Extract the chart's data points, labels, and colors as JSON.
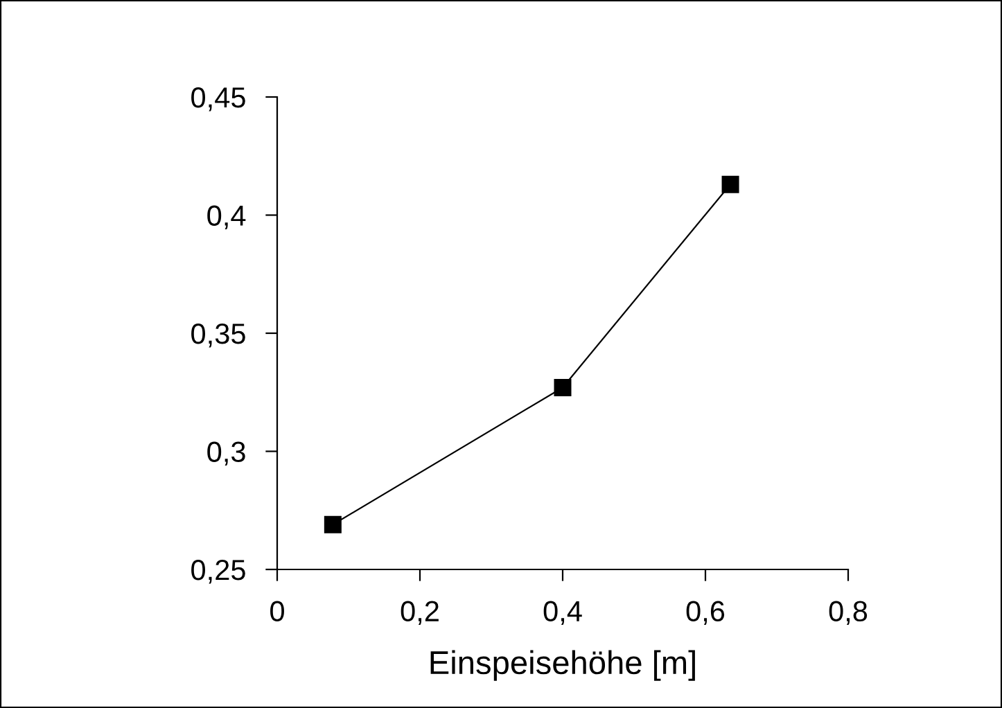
{
  "chart_data": {
    "type": "line",
    "xlabel": "Einspeisehöhe [m]",
    "x": [
      0.078,
      0.4,
      0.635
    ],
    "series": [
      {
        "color": "#000000",
        "values": [
          0.269,
          0.327,
          0.413
        ]
      }
    ],
    "marker": "square",
    "line_style": "solid",
    "grid": false,
    "legend": false,
    "xlim": [
      0,
      0.8
    ],
    "ylim": [
      0.25,
      0.45
    ],
    "xticks": [
      0,
      {
        "value": 0.2,
        "label": "0,2"
      },
      {
        "value": 0.4,
        "label": "0,4"
      },
      {
        "value": 0.6,
        "label": "0,6"
      },
      {
        "value": 0.8,
        "label": "0,8"
      }
    ],
    "yticks": [
      {
        "value": 0.25,
        "label": "0,25"
      },
      {
        "value": 0.3,
        "label": "0,3"
      },
      {
        "value": 0.35,
        "label": "0,35"
      },
      {
        "value": 0.4,
        "label": "0,4"
      },
      {
        "value": 0.45,
        "label": "0,45"
      }
    ]
  }
}
